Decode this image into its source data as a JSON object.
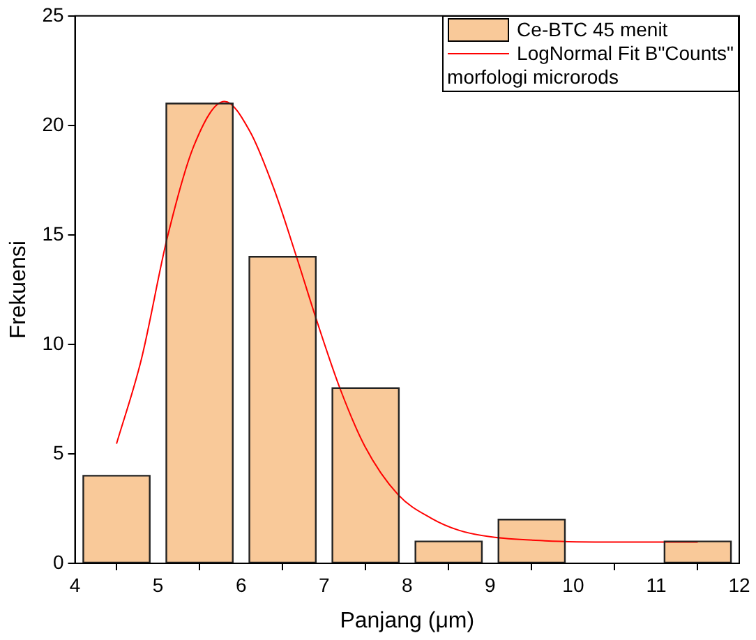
{
  "chart_data": {
    "type": "histogram",
    "xlabel": "Panjang (μm)",
    "ylabel": "Frekuensi",
    "legend": "top right",
    "legend_title": "morfologi microrods",
    "bins": [
      4,
      5,
      6,
      7,
      8,
      9,
      10,
      11,
      12
    ],
    "xlim": [
      4,
      12
    ],
    "xticks": [
      4,
      5,
      6,
      7,
      8,
      9,
      10,
      11,
      12
    ],
    "ylim": [
      0,
      25
    ],
    "yticks": [
      0,
      5,
      10,
      15,
      20,
      25
    ],
    "series": [
      {
        "name": "Ce-BTC 45 menit",
        "color": "#f9c999",
        "values": [
          4,
          21,
          14,
          8,
          1,
          2,
          0,
          1
        ]
      },
      {
        "type": "line",
        "name": "LogNormal Fit B\"Counts\"",
        "color": "#ff0000",
        "x": [
          4.5,
          4.8,
          5.11,
          5.43,
          5.8,
          6.11,
          6.4,
          6.67,
          6.91,
          7.19,
          7.49,
          7.89,
          8.29,
          8.63,
          9.01,
          9.66,
          10.5,
          11.5
        ],
        "values": [
          5.46,
          9.33,
          14.85,
          19.05,
          21.09,
          19.7,
          17.06,
          13.97,
          11.1,
          8.0,
          5.35,
          3.14,
          2.06,
          1.5,
          1.21,
          1.03,
          0.97,
          0.97
        ]
      }
    ]
  }
}
